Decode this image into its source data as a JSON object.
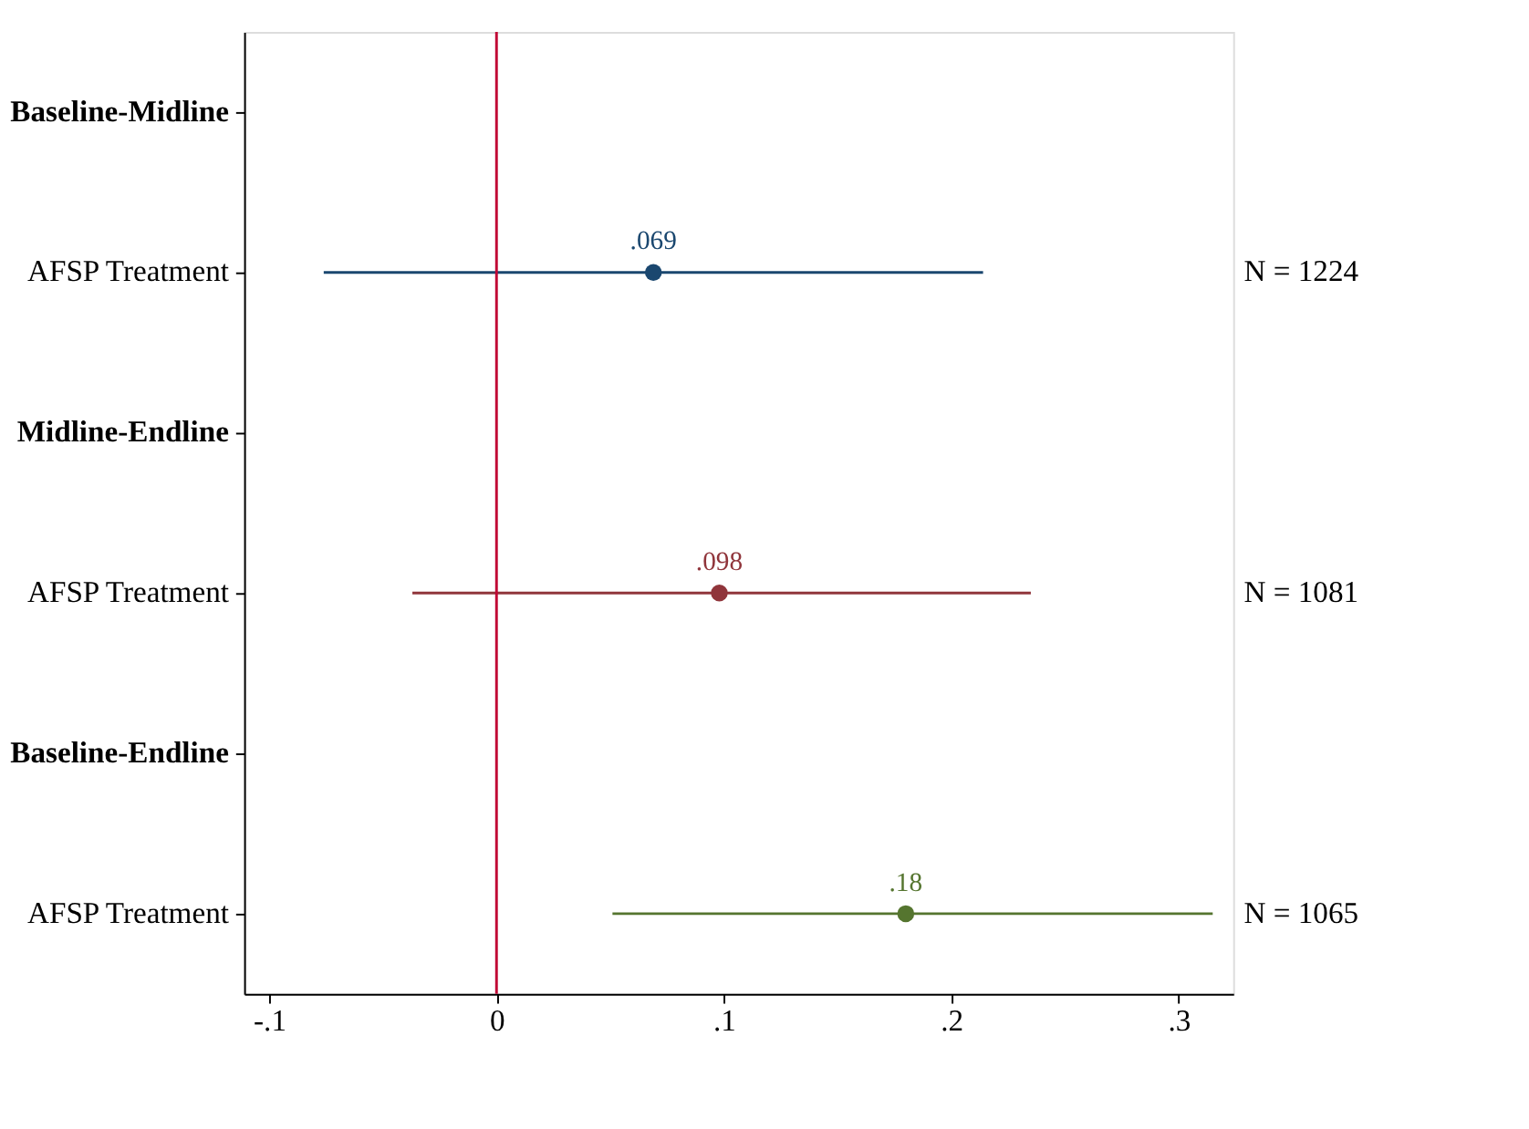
{
  "chart_data": {
    "type": "scatter",
    "orientation": "horizontal",
    "categories": [
      "Baseline-Midline",
      "AFSP Treatment",
      "Midline-Endline",
      "AFSP Treatment",
      "Baseline-Endline",
      "AFSP Treatment"
    ],
    "series": [
      {
        "color": "#1a476f",
        "values": [
          null,
          0.069,
          null,
          null,
          null,
          null
        ],
        "errors": [
          null,
          [
            -0.076,
            0.214
          ],
          null,
          null,
          null,
          null
        ],
        "value_labels": [
          null,
          ".069",
          null,
          null,
          null,
          null
        ]
      },
      {
        "color": "#90353b",
        "values": [
          null,
          null,
          null,
          0.098,
          null,
          null
        ],
        "errors": [
          null,
          null,
          null,
          [
            -0.037,
            0.235
          ],
          null,
          null
        ],
        "value_labels": [
          null,
          null,
          null,
          ".098",
          null,
          null
        ]
      },
      {
        "color": "#55752f",
        "values": [
          null,
          null,
          null,
          null,
          null,
          0.18
        ],
        "errors": [
          null,
          null,
          null,
          null,
          null,
          [
            0.051,
            0.315
          ]
        ],
        "value_labels": [
          null,
          null,
          null,
          null,
          null,
          ".18"
        ]
      }
    ],
    "xlim": [
      -0.111,
      0.324
    ],
    "xticks": [
      {
        "value": -0.1,
        "label": "-.1"
      },
      0,
      {
        "value": 0.1,
        "label": ".1"
      },
      {
        "value": 0.2,
        "label": ".2"
      },
      {
        "value": 0.3,
        "label": ".3"
      }
    ],
    "ref_lines": [
      {
        "axis": "x",
        "value": 0,
        "color": "#c10534"
      }
    ],
    "annotations": [
      "N = 1224",
      "N = 1081",
      "N = 1065"
    ],
    "marker": "circle",
    "legend": false,
    "grid": false
  }
}
